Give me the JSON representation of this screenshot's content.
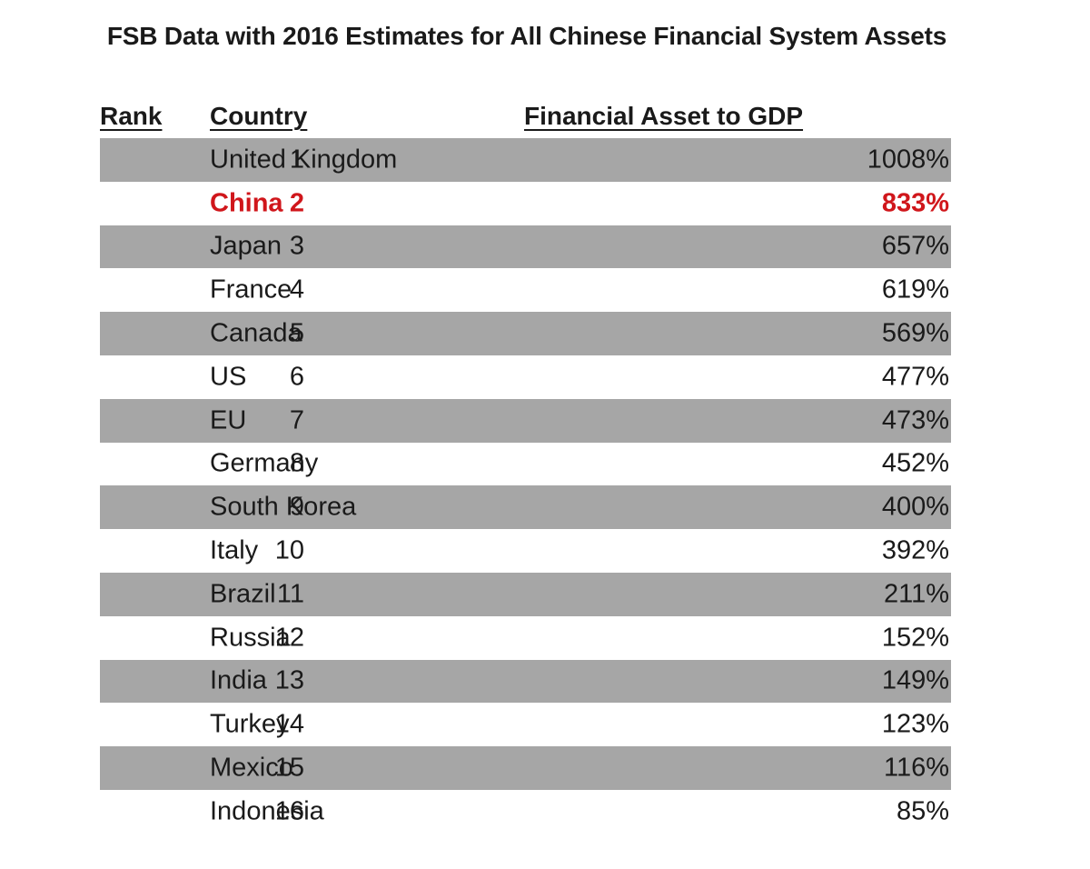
{
  "title": "FSB Data with 2016 Estimates for All Chinese Financial System Assets",
  "headers": {
    "rank": "Rank",
    "country": "Country",
    "ratio": "Financial Asset to GDP"
  },
  "colors": {
    "shade": "#a6a6a6",
    "highlight": "#d0161b",
    "text": "#1a1a1a"
  },
  "chart_data": {
    "type": "table",
    "title": "FSB Data with 2016 Estimates for All Chinese Financial System Assets",
    "columns": [
      "Rank",
      "Country",
      "Financial Asset to GDP"
    ],
    "rows": [
      {
        "rank": "1",
        "country": "United Kingdom",
        "value": "1008%",
        "highlight": false
      },
      {
        "rank": "2",
        "country": "China",
        "value": "833%",
        "highlight": true
      },
      {
        "rank": "3",
        "country": "Japan",
        "value": "657%",
        "highlight": false
      },
      {
        "rank": "4",
        "country": "France",
        "value": "619%",
        "highlight": false
      },
      {
        "rank": "5",
        "country": "Canada",
        "value": "569%",
        "highlight": false
      },
      {
        "rank": "6",
        "country": "US",
        "value": "477%",
        "highlight": false
      },
      {
        "rank": "7",
        "country": "EU",
        "value": "473%",
        "highlight": false
      },
      {
        "rank": "8",
        "country": "Germany",
        "value": "452%",
        "highlight": false
      },
      {
        "rank": "9",
        "country": "South Korea",
        "value": "400%",
        "highlight": false
      },
      {
        "rank": "10",
        "country": "Italy",
        "value": "392%",
        "highlight": false
      },
      {
        "rank": "11",
        "country": "Brazil",
        "value": "211%",
        "highlight": false
      },
      {
        "rank": "12",
        "country": "Russia",
        "value": "152%",
        "highlight": false
      },
      {
        "rank": "13",
        "country": "India",
        "value": "149%",
        "highlight": false
      },
      {
        "rank": "14",
        "country": "Turkey",
        "value": "123%",
        "highlight": false
      },
      {
        "rank": "15",
        "country": "Mexico",
        "value": "116%",
        "highlight": false
      },
      {
        "rank": "16",
        "country": "Indonesia",
        "value": "85%",
        "highlight": false
      }
    ]
  }
}
